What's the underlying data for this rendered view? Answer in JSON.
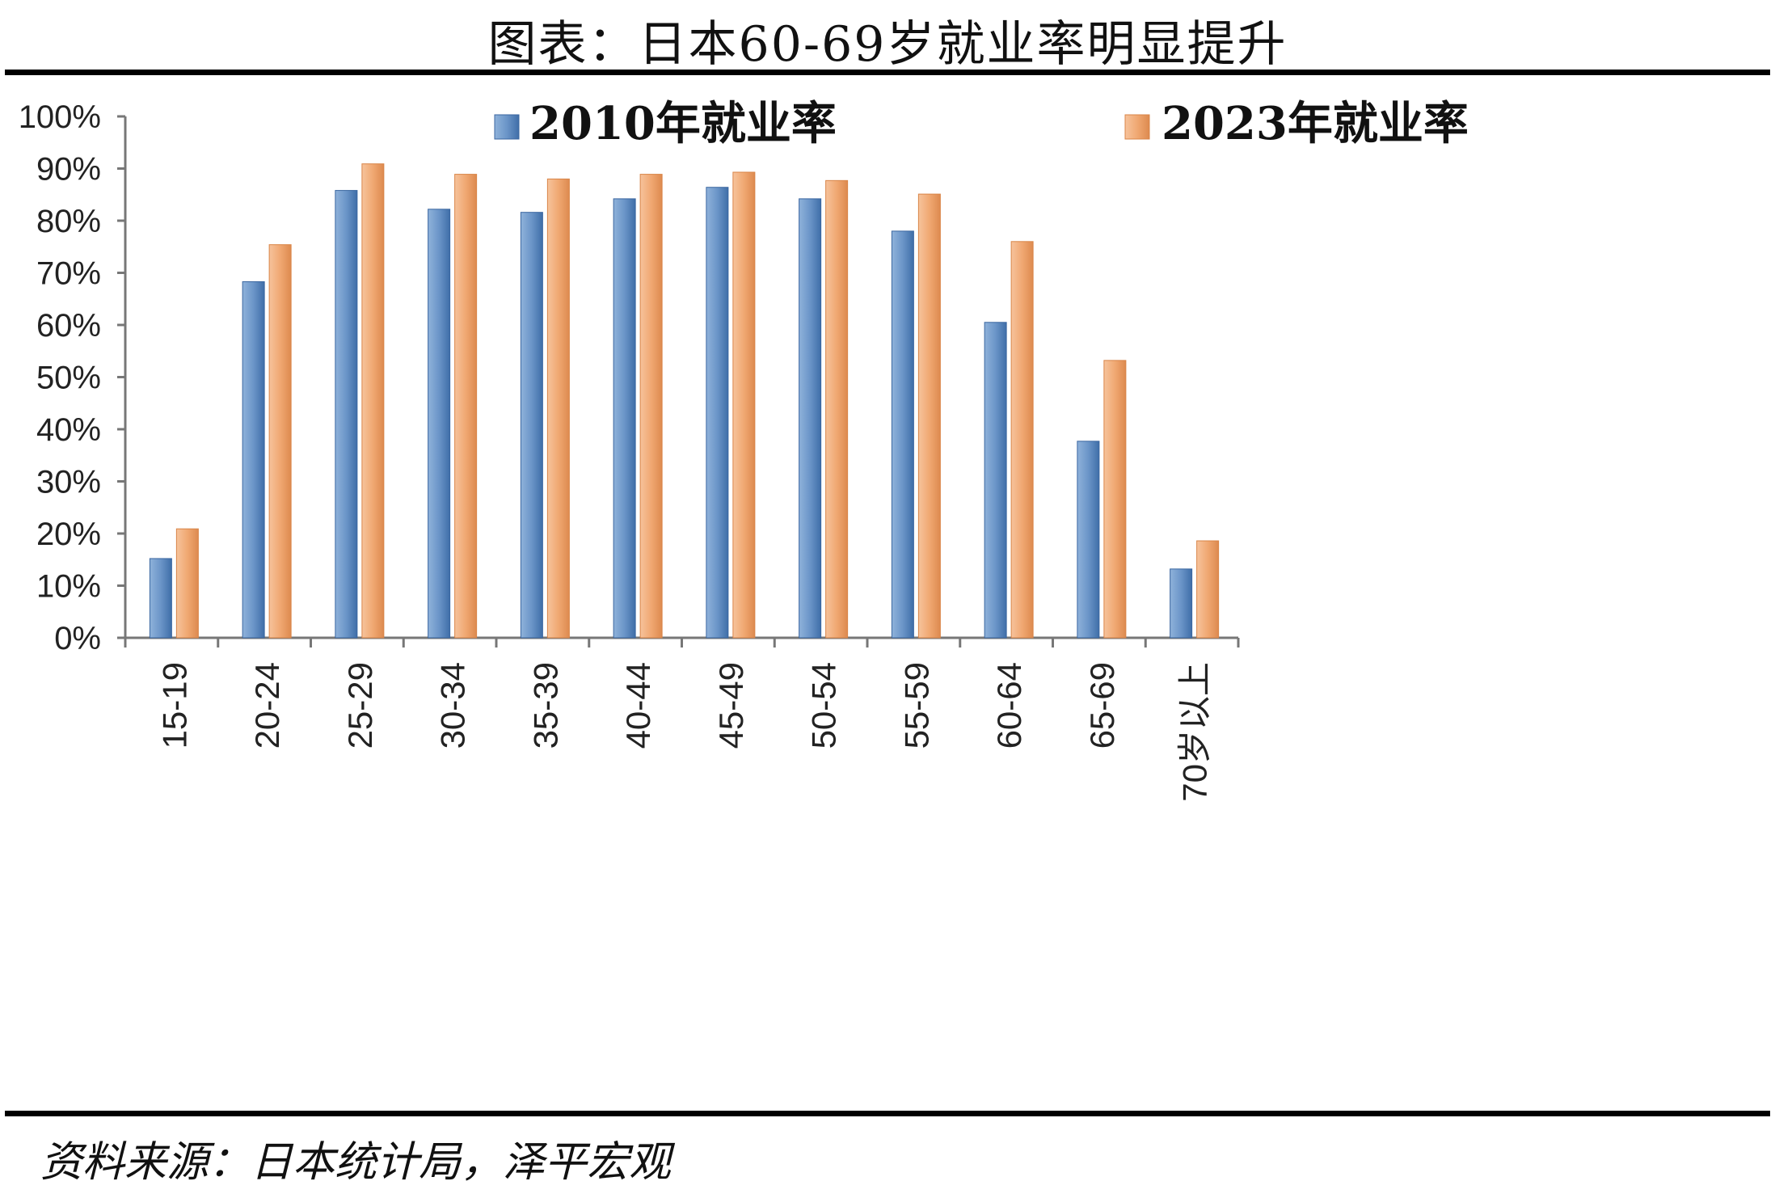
{
  "title": "图表：日本60-69岁就业率明显提升",
  "source": "资料来源：日本统计局，泽平宏观",
  "colors": {
    "series1": "#4f81bd",
    "series2": "#f79646"
  },
  "chart_data": {
    "type": "bar",
    "categories": [
      "15-19",
      "20-24",
      "25-29",
      "30-34",
      "35-39",
      "40-44",
      "45-49",
      "50-54",
      "55-59",
      "60-64",
      "65-69",
      "70岁以上"
    ],
    "series": [
      {
        "name": "2010年就业率",
        "values": [
          15.2,
          68.3,
          85.8,
          82.2,
          81.6,
          84.2,
          86.4,
          84.2,
          78.0,
          60.5,
          37.7,
          13.2
        ]
      },
      {
        "name": "2023年就业率",
        "values": [
          20.9,
          75.4,
          90.9,
          88.9,
          88.0,
          88.9,
          89.3,
          87.7,
          85.1,
          76.0,
          53.2,
          18.6
        ]
      }
    ],
    "yticks": [
      "0%",
      "10%",
      "20%",
      "30%",
      "40%",
      "50%",
      "60%",
      "70%",
      "80%",
      "90%",
      "100%"
    ],
    "ylim": [
      0,
      100
    ],
    "legend_position": "top"
  }
}
